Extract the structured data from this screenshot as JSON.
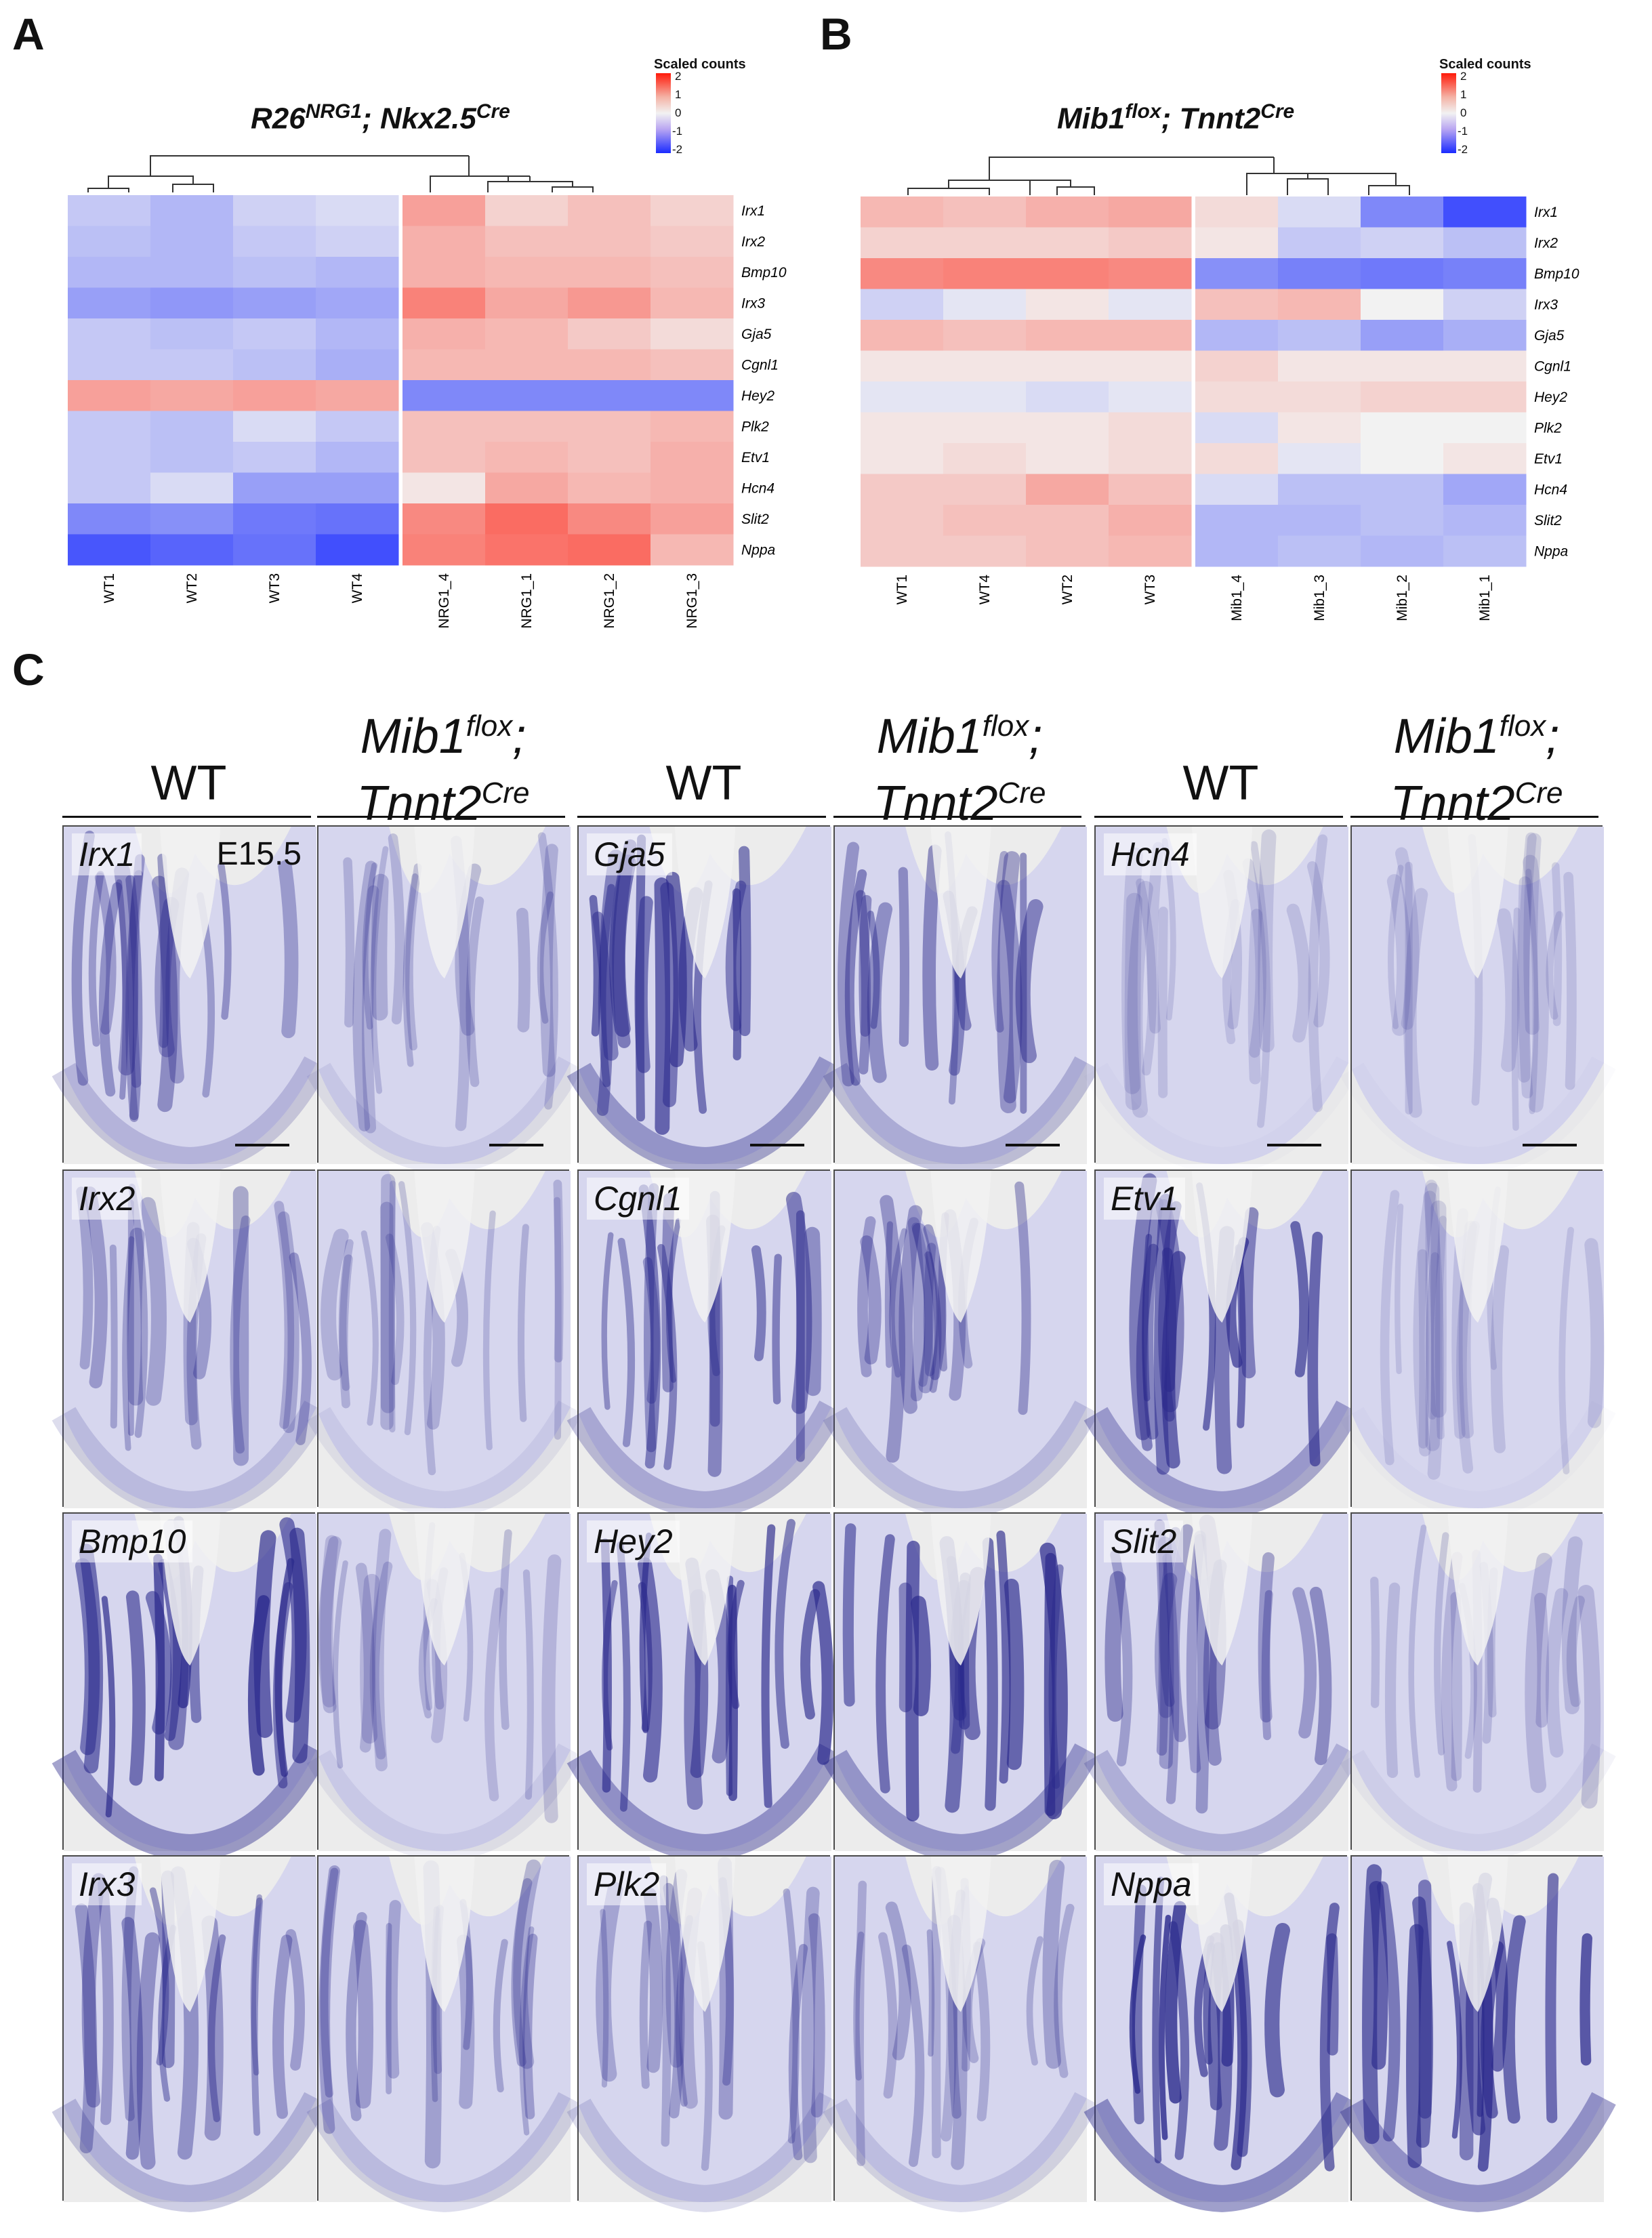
{
  "panel_labels": {
    "a": "A",
    "b": "B",
    "c": "C"
  },
  "legend": {
    "title": "Scaled counts",
    "ticks": [
      "2",
      "1",
      "0",
      "-1",
      "-2"
    ]
  },
  "heatmap_a": {
    "title_base": "R26",
    "title_sup": "NRG1",
    "title_mid": "; Nkx2.5",
    "title_sup2": "Cre",
    "genes": [
      "Irx1",
      "Irx2",
      "Bmp10",
      "Irx3",
      "Gja5",
      "Cgnl1",
      "Hey2",
      "Plk2",
      "Etv1",
      "Hcn4",
      "Slit2",
      "Nppa"
    ],
    "samples": [
      "WT1",
      "WT2",
      "WT3",
      "WT4",
      "NRG1_4",
      "NRG1_1",
      "NRG1_2",
      "NRG1_3"
    ]
  },
  "heatmap_b": {
    "title_base": "Mib1",
    "title_sup": "flox",
    "title_mid": "; Tnnt2",
    "title_sup2": "Cre",
    "genes": [
      "Irx1",
      "Irx2",
      "Bmp10",
      "Irx3",
      "Gja5",
      "Cgnl1",
      "Hey2",
      "Plk2",
      "Etv1",
      "Hcn4",
      "Slit2",
      "Nppa"
    ],
    "samples": [
      "WT1",
      "WT4",
      "WT2",
      "WT3",
      "Mib1_4",
      "Mib1_3",
      "Mib1_2",
      "Mib1_1"
    ]
  },
  "chart_data": [
    {
      "type": "heatmap",
      "title": "R26NRG1; Nkx2.5Cre",
      "rows": [
        "Irx1",
        "Irx2",
        "Bmp10",
        "Irx3",
        "Gja5",
        "Cgnl1",
        "Hey2",
        "Plk2",
        "Etv1",
        "Hcn4",
        "Slit2",
        "Nppa"
      ],
      "columns": [
        "WT1",
        "WT2",
        "WT3",
        "WT4",
        "NRG1_4",
        "NRG1_1",
        "NRG1_2",
        "NRG1_3"
      ],
      "color_scale": {
        "label": "Scaled counts",
        "min": -2,
        "max": 2,
        "low": "#1a2bff",
        "mid": "#f2f2f2",
        "high": "#ff1a0a"
      },
      "values": [
        [
          -0.4,
          -0.6,
          -0.3,
          -0.2,
          0.9,
          0.3,
          0.5,
          0.3
        ],
        [
          -0.5,
          -0.6,
          -0.4,
          -0.3,
          0.7,
          0.5,
          0.5,
          0.4
        ],
        [
          -0.6,
          -0.6,
          -0.5,
          -0.6,
          0.7,
          0.6,
          0.6,
          0.5
        ],
        [
          -0.9,
          -1.0,
          -0.9,
          -0.8,
          1.3,
          0.8,
          1.0,
          0.6
        ],
        [
          -0.4,
          -0.5,
          -0.4,
          -0.6,
          0.7,
          0.6,
          0.4,
          0.2
        ],
        [
          -0.4,
          -0.4,
          -0.5,
          -0.7,
          0.6,
          0.6,
          0.6,
          0.5
        ],
        [
          0.9,
          0.8,
          0.9,
          0.8,
          -1.2,
          -1.2,
          -1.2,
          -1.2
        ],
        [
          -0.4,
          -0.5,
          -0.2,
          -0.4,
          0.5,
          0.5,
          0.5,
          0.6
        ],
        [
          -0.4,
          -0.5,
          -0.4,
          -0.6,
          0.5,
          0.6,
          0.5,
          0.7
        ],
        [
          -0.4,
          -0.2,
          -0.9,
          -0.9,
          0.1,
          0.8,
          0.6,
          0.7
        ],
        [
          -1.2,
          -1.1,
          -1.4,
          -1.5,
          1.2,
          1.6,
          1.2,
          0.9
        ],
        [
          -1.9,
          -1.7,
          -1.5,
          -2.0,
          1.3,
          1.5,
          1.6,
          0.6
        ]
      ]
    },
    {
      "type": "heatmap",
      "title": "Mib1flox; Tnnt2Cre",
      "rows": [
        "Irx1",
        "Irx2",
        "Bmp10",
        "Irx3",
        "Gja5",
        "Cgnl1",
        "Hey2",
        "Plk2",
        "Etv1",
        "Hcn4",
        "Slit2",
        "Nppa"
      ],
      "columns": [
        "WT1",
        "WT4",
        "WT2",
        "WT3",
        "Mib1_4",
        "Mib1_3",
        "Mib1_2",
        "Mib1_1"
      ],
      "color_scale": {
        "label": "Scaled counts",
        "min": -2,
        "max": 2,
        "low": "#1a2bff",
        "mid": "#f2f2f2",
        "high": "#ff1a0a"
      },
      "values": [
        [
          0.6,
          0.5,
          0.7,
          0.8,
          0.2,
          -0.2,
          -1.2,
          -2.0
        ],
        [
          0.3,
          0.3,
          0.3,
          0.4,
          0.1,
          -0.4,
          -0.3,
          -0.5
        ],
        [
          1.2,
          1.3,
          1.3,
          1.2,
          -1.1,
          -1.3,
          -1.4,
          -1.3
        ],
        [
          -0.3,
          -0.1,
          0.1,
          -0.1,
          0.5,
          0.6,
          0.0,
          -0.3
        ],
        [
          0.6,
          0.5,
          0.6,
          0.6,
          -0.6,
          -0.5,
          -0.9,
          -0.7
        ],
        [
          0.1,
          0.1,
          0.1,
          0.1,
          0.3,
          0.1,
          0.1,
          0.1
        ],
        [
          -0.1,
          -0.1,
          -0.2,
          -0.1,
          0.2,
          0.2,
          0.3,
          0.3
        ],
        [
          0.1,
          0.1,
          0.1,
          0.2,
          -0.2,
          0.1,
          0.0,
          0.0
        ],
        [
          0.1,
          0.2,
          0.1,
          0.2,
          0.2,
          -0.1,
          0.0,
          0.1
        ],
        [
          0.4,
          0.4,
          0.8,
          0.5,
          -0.2,
          -0.5,
          -0.5,
          -0.8
        ],
        [
          0.4,
          0.5,
          0.5,
          0.7,
          -0.6,
          -0.6,
          -0.5,
          -0.6
        ],
        [
          0.4,
          0.4,
          0.5,
          0.6,
          -0.6,
          -0.5,
          -0.6,
          -0.5
        ]
      ]
    }
  ],
  "panel_c": {
    "headers": [
      {
        "line1": "",
        "line2": "WT"
      },
      {
        "line1": "Mib1",
        "line1_sup": "flox",
        "line1_tail": ";",
        "line2": "Tnnt2",
        "line2_sup": "Cre"
      },
      {
        "line1": "",
        "line2": "WT"
      },
      {
        "line1": "Mib1",
        "line1_sup": "flox",
        "line1_tail": ";",
        "line2": "Tnnt2",
        "line2_sup": "Cre"
      },
      {
        "line1": "",
        "line2": "WT"
      },
      {
        "line1": "Mib1",
        "line1_sup": "flox",
        "line1_tail": ";",
        "line2": "Tnnt2",
        "line2_sup": "Cre"
      }
    ],
    "stage_label": "E15.5",
    "rows": [
      [
        "Irx1",
        "Gja5",
        "Hcn4"
      ],
      [
        "Irx2",
        "Cgnl1",
        "Etv1"
      ],
      [
        "Bmp10",
        "Hey2",
        "Slit2"
      ],
      [
        "Irx3",
        "Plk2",
        "Nppa"
      ]
    ],
    "stain_intensity": [
      [
        0.45,
        0.2,
        0.85,
        0.55,
        0.05,
        0.05
      ],
      [
        0.35,
        0.18,
        0.6,
        0.4,
        0.8,
        0.05
      ],
      [
        0.95,
        0.18,
        0.9,
        0.85,
        0.5,
        0.12
      ],
      [
        0.5,
        0.35,
        0.35,
        0.3,
        1.0,
        0.9
      ]
    ],
    "stain_color": "#2b2a8c",
    "background_color": "#ececec"
  }
}
